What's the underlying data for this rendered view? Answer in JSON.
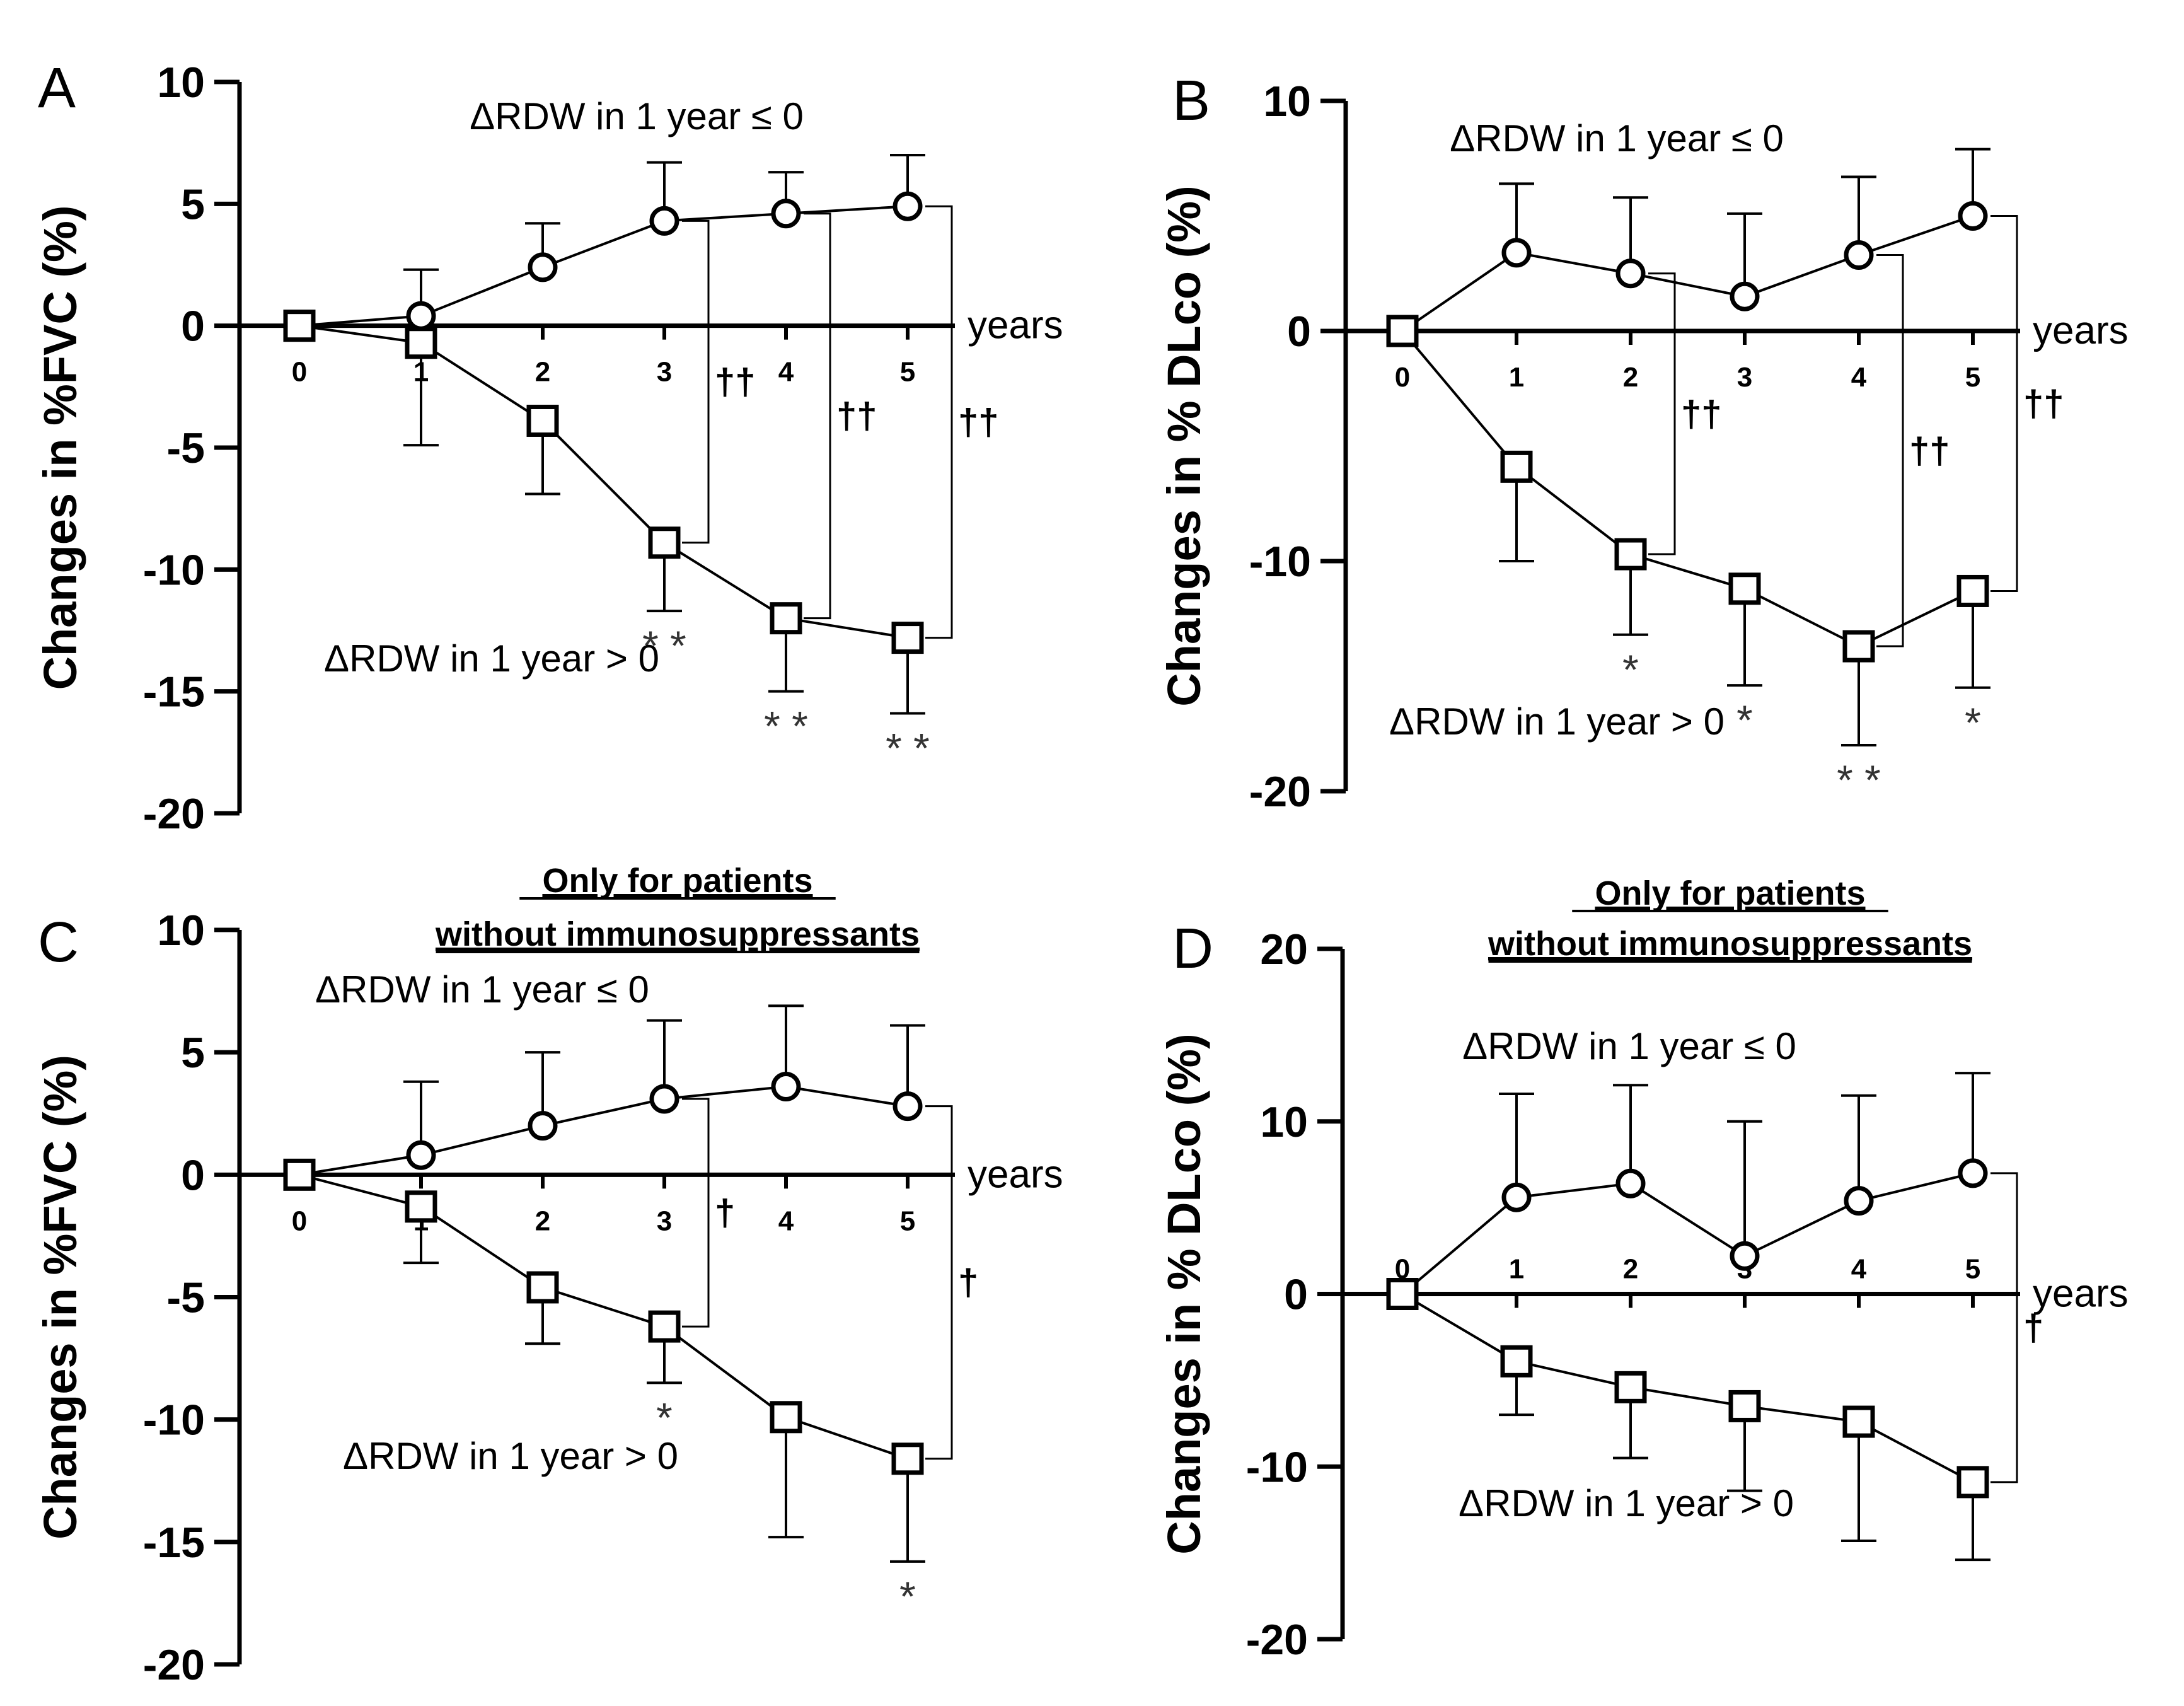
{
  "figure": {
    "x_axis_label": "years",
    "group_le": "ΔRDW in 1 year ≤ 0",
    "group_gt": "ΔRDW in 1 year > 0"
  },
  "chart_data": [
    {
      "panel": "A",
      "type": "line",
      "ylabel": "Changes in %FVC (%)",
      "xlabel": "years",
      "subtitle": [],
      "ylim": [
        -20,
        10
      ],
      "yticks": [
        10,
        5,
        0,
        -5,
        -10,
        -15,
        -20
      ],
      "categories": [
        "0",
        "1",
        "2",
        "3",
        "4",
        "5"
      ],
      "x": [
        0,
        1,
        2,
        3,
        4,
        5
      ],
      "series": [
        {
          "name": "ΔRDW in 1 year ≤ 0",
          "marker": "circle",
          "values": [
            0,
            0.4,
            2.4,
            4.3,
            4.6,
            4.9
          ],
          "error": [
            0,
            1.9,
            1.8,
            2.4,
            1.7,
            2.1
          ],
          "error_dir": "up",
          "sig": [
            "",
            "",
            "",
            "",
            "",
            ""
          ]
        },
        {
          "name": "ΔRDW in 1 year > 0",
          "marker": "square",
          "values": [
            0,
            -0.7,
            -3.9,
            -8.9,
            -12.0,
            -12.8
          ],
          "error": [
            0,
            4.2,
            3.0,
            2.8,
            3.0,
            3.1
          ],
          "error_dir": "down",
          "sig": [
            "",
            "",
            "",
            "* *",
            "* *",
            "* *"
          ]
        }
      ],
      "brackets": [
        {
          "x": 3,
          "label": "††"
        },
        {
          "x": 4,
          "label": "††"
        },
        {
          "x": 5,
          "label": "††"
        }
      ]
    },
    {
      "panel": "B",
      "type": "line",
      "ylabel": "Changes in % DLco (%)",
      "xlabel": "years",
      "subtitle": [],
      "ylim": [
        -20,
        10
      ],
      "yticks": [
        10,
        0,
        -10,
        -20
      ],
      "categories": [
        "0",
        "1",
        "2",
        "3",
        "4",
        "5"
      ],
      "x": [
        0,
        1,
        2,
        3,
        4,
        5
      ],
      "series": [
        {
          "name": "ΔRDW in 1 year ≤ 0",
          "marker": "circle",
          "values": [
            0,
            3.4,
            2.5,
            1.5,
            3.3,
            5.0
          ],
          "error": [
            0,
            3.0,
            3.3,
            3.6,
            3.4,
            2.9
          ],
          "error_dir": "up",
          "sig": [
            "",
            "",
            "",
            "",
            "",
            ""
          ]
        },
        {
          "name": "ΔRDW in 1 year > 0",
          "marker": "square",
          "values": [
            0,
            -5.9,
            -9.7,
            -11.2,
            -13.7,
            -11.3
          ],
          "error": [
            0,
            4.1,
            3.5,
            4.2,
            4.3,
            4.2
          ],
          "error_dir": "down",
          "sig": [
            "",
            "",
            "*",
            "*",
            "* *",
            "*"
          ]
        }
      ],
      "brackets": [
        {
          "x": 2,
          "label": "††"
        },
        {
          "x": 4,
          "label": "††"
        },
        {
          "x": 5,
          "label": "††"
        }
      ]
    },
    {
      "panel": "C",
      "type": "line",
      "ylabel": "Changes in %FVC (%)",
      "xlabel": "years",
      "subtitle": [
        "Only for patients",
        "without immunosuppressants"
      ],
      "ylim": [
        -20,
        10
      ],
      "yticks": [
        10,
        5,
        0,
        -5,
        -10,
        -15,
        -20
      ],
      "categories": [
        "0",
        "1",
        "2",
        "3",
        "4",
        "5"
      ],
      "x": [
        0,
        1,
        2,
        3,
        4,
        5
      ],
      "series": [
        {
          "name": "ΔRDW in 1 year ≤ 0",
          "marker": "circle",
          "values": [
            0,
            0.8,
            2.0,
            3.1,
            3.6,
            2.8
          ],
          "error": [
            0,
            3.0,
            3.0,
            3.2,
            3.3,
            3.3
          ],
          "error_dir": "up",
          "sig": [
            "",
            "",
            "",
            "",
            "",
            ""
          ]
        },
        {
          "name": "ΔRDW in 1 year > 0",
          "marker": "square",
          "values": [
            0,
            -1.3,
            -4.6,
            -6.2,
            -9.9,
            -11.6
          ],
          "error": [
            0,
            2.3,
            2.3,
            2.3,
            4.9,
            4.2
          ],
          "error_dir": "down",
          "sig": [
            "",
            "",
            "",
            "*",
            "",
            "*"
          ]
        }
      ],
      "brackets": [
        {
          "x": 3,
          "label": "†"
        },
        {
          "x": 5,
          "label": "†"
        }
      ]
    },
    {
      "panel": "D",
      "type": "line",
      "ylabel": "Changes in % DLco (%)",
      "xlabel": "years",
      "subtitle": [
        "Only for patients",
        "without immunosuppressants"
      ],
      "ylim": [
        -20,
        20
      ],
      "yticks": [
        20,
        10,
        0,
        -10,
        -20
      ],
      "categories": [
        "0",
        "1",
        "2",
        "3",
        "4",
        "5"
      ],
      "x": [
        0,
        1,
        2,
        3,
        4,
        5
      ],
      "series": [
        {
          "name": "ΔRDW in 1 year ≤ 0",
          "marker": "circle",
          "values": [
            0,
            5.6,
            6.4,
            2.2,
            5.4,
            7.0
          ],
          "error": [
            0,
            6.0,
            5.7,
            7.8,
            6.1,
            5.8
          ],
          "error_dir": "up",
          "sig": [
            "",
            "",
            "",
            "",
            "",
            ""
          ]
        },
        {
          "name": "ΔRDW in 1 year > 0",
          "marker": "square",
          "values": [
            0,
            -3.9,
            -5.4,
            -6.5,
            -7.4,
            -10.9
          ],
          "error": [
            0,
            3.1,
            4.1,
            4.9,
            6.9,
            4.5
          ],
          "error_dir": "down",
          "sig": [
            "",
            "",
            "",
            "",
            "",
            ""
          ]
        }
      ],
      "brackets": [
        {
          "x": 5,
          "label": "†"
        }
      ]
    }
  ]
}
